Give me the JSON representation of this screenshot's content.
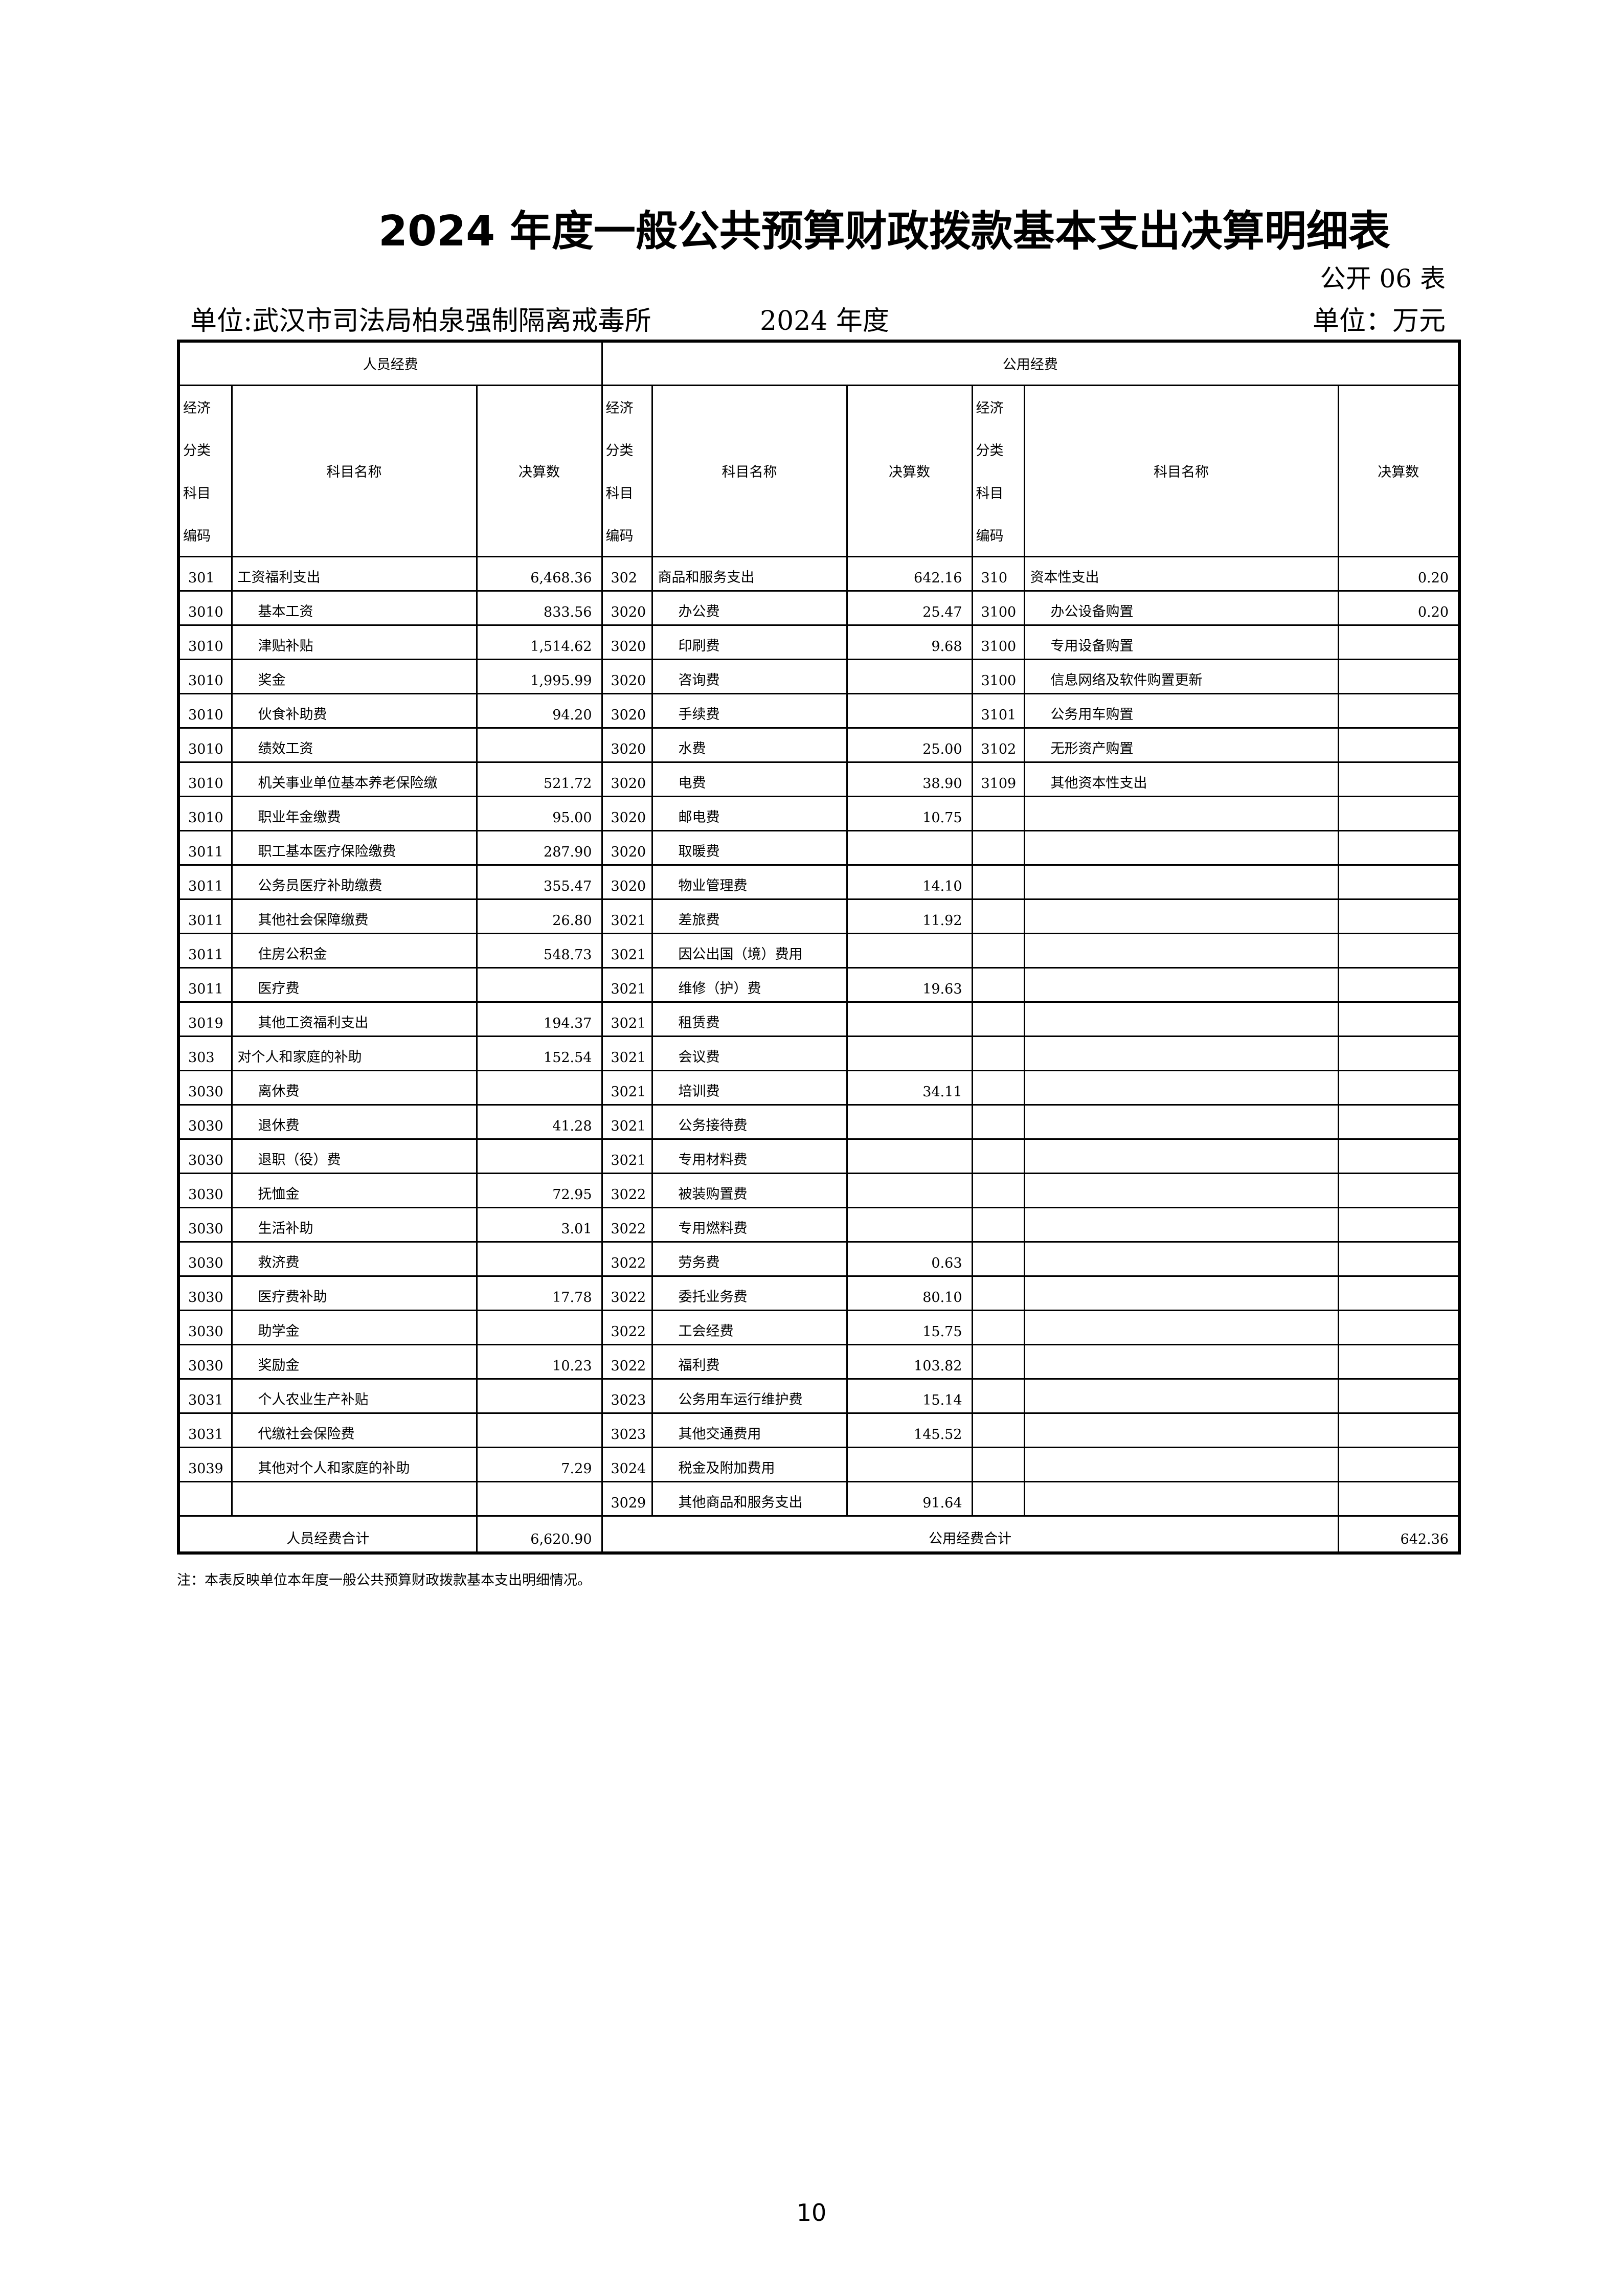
{
  "title": "2024 年度一般公共预算财政拨款基本支出决算明细表",
  "table_no": "公开 06 表",
  "unit_org": "单位:武汉市司法局柏泉强制隔离戒毒所",
  "year": "2024 年度",
  "unit_money": "单位：万元",
  "headers": {
    "personnel": "人员经费",
    "public": "公用经费",
    "code_lines": [
      "经济",
      "分类",
      "科目",
      "编码"
    ],
    "name": "科目名称",
    "amount": "决算数"
  },
  "personnel_rows": [
    {
      "code": "301",
      "name": "工资福利支出",
      "amount": "6,468.36",
      "level": 1
    },
    {
      "code": "3010",
      "name": "基本工资",
      "amount": "833.56",
      "level": 2
    },
    {
      "code": "3010",
      "name": "津贴补贴",
      "amount": "1,514.62",
      "level": 2
    },
    {
      "code": "3010",
      "name": "奖金",
      "amount": "1,995.99",
      "level": 2
    },
    {
      "code": "3010",
      "name": "伙食补助费",
      "amount": "94.20",
      "level": 2
    },
    {
      "code": "3010",
      "name": "绩效工资",
      "amount": "",
      "level": 2
    },
    {
      "code": "3010",
      "name": "机关事业单位基本养老保险缴",
      "amount": "521.72",
      "level": 2
    },
    {
      "code": "3010",
      "name": "职业年金缴费",
      "amount": "95.00",
      "level": 2
    },
    {
      "code": "3011",
      "name": "职工基本医疗保险缴费",
      "amount": "287.90",
      "level": 2
    },
    {
      "code": "3011",
      "name": "公务员医疗补助缴费",
      "amount": "355.47",
      "level": 2
    },
    {
      "code": "3011",
      "name": "其他社会保障缴费",
      "amount": "26.80",
      "level": 2
    },
    {
      "code": "3011",
      "name": "住房公积金",
      "amount": "548.73",
      "level": 2
    },
    {
      "code": "3011",
      "name": "医疗费",
      "amount": "",
      "level": 2
    },
    {
      "code": "3019",
      "name": "其他工资福利支出",
      "amount": "194.37",
      "level": 2
    },
    {
      "code": "303",
      "name": "对个人和家庭的补助",
      "amount": "152.54",
      "level": 1
    },
    {
      "code": "3030",
      "name": "离休费",
      "amount": "",
      "level": 2
    },
    {
      "code": "3030",
      "name": "退休费",
      "amount": "41.28",
      "level": 2
    },
    {
      "code": "3030",
      "name": "退职（役）费",
      "amount": "",
      "level": 2
    },
    {
      "code": "3030",
      "name": "抚恤金",
      "amount": "72.95",
      "level": 2
    },
    {
      "code": "3030",
      "name": "生活补助",
      "amount": "3.01",
      "level": 2
    },
    {
      "code": "3030",
      "name": "救济费",
      "amount": "",
      "level": 2
    },
    {
      "code": "3030",
      "name": "医疗费补助",
      "amount": "17.78",
      "level": 2
    },
    {
      "code": "3030",
      "name": "助学金",
      "amount": "",
      "level": 2
    },
    {
      "code": "3030",
      "name": "奖励金",
      "amount": "10.23",
      "level": 2
    },
    {
      "code": "3031",
      "name": "个人农业生产补贴",
      "amount": "",
      "level": 2
    },
    {
      "code": "3031",
      "name": "代缴社会保险费",
      "amount": "",
      "level": 2
    },
    {
      "code": "3039",
      "name": "其他对个人和家庭的补助",
      "amount": "7.29",
      "level": 2
    },
    {
      "code": "",
      "name": "",
      "amount": "",
      "level": 2
    }
  ],
  "goods_rows": [
    {
      "code": "302",
      "name": "商品和服务支出",
      "amount": "642.16",
      "level": 1
    },
    {
      "code": "3020",
      "name": "办公费",
      "amount": "25.47",
      "level": 2
    },
    {
      "code": "3020",
      "name": "印刷费",
      "amount": "9.68",
      "level": 2
    },
    {
      "code": "3020",
      "name": "咨询费",
      "amount": "",
      "level": 2
    },
    {
      "code": "3020",
      "name": "手续费",
      "amount": "",
      "level": 2
    },
    {
      "code": "3020",
      "name": "水费",
      "amount": "25.00",
      "level": 2
    },
    {
      "code": "3020",
      "name": "电费",
      "amount": "38.90",
      "level": 2
    },
    {
      "code": "3020",
      "name": "邮电费",
      "amount": "10.75",
      "level": 2
    },
    {
      "code": "3020",
      "name": "取暖费",
      "amount": "",
      "level": 2
    },
    {
      "code": "3020",
      "name": "物业管理费",
      "amount": "14.10",
      "level": 2
    },
    {
      "code": "3021",
      "name": "差旅费",
      "amount": "11.92",
      "level": 2
    },
    {
      "code": "3021",
      "name": "因公出国（境）费用",
      "amount": "",
      "level": 2
    },
    {
      "code": "3021",
      "name": "维修（护）费",
      "amount": "19.63",
      "level": 2
    },
    {
      "code": "3021",
      "name": "租赁费",
      "amount": "",
      "level": 2
    },
    {
      "code": "3021",
      "name": "会议费",
      "amount": "",
      "level": 2
    },
    {
      "code": "3021",
      "name": "培训费",
      "amount": "34.11",
      "level": 2
    },
    {
      "code": "3021",
      "name": "公务接待费",
      "amount": "",
      "level": 2
    },
    {
      "code": "3021",
      "name": "专用材料费",
      "amount": "",
      "level": 2
    },
    {
      "code": "3022",
      "name": "被装购置费",
      "amount": "",
      "level": 2
    },
    {
      "code": "3022",
      "name": "专用燃料费",
      "amount": "",
      "level": 2
    },
    {
      "code": "3022",
      "name": "劳务费",
      "amount": "0.63",
      "level": 2
    },
    {
      "code": "3022",
      "name": "委托业务费",
      "amount": "80.10",
      "level": 2
    },
    {
      "code": "3022",
      "name": "工会经费",
      "amount": "15.75",
      "level": 2
    },
    {
      "code": "3022",
      "name": "福利费",
      "amount": "103.82",
      "level": 2
    },
    {
      "code": "3023",
      "name": "公务用车运行维护费",
      "amount": "15.14",
      "level": 2
    },
    {
      "code": "3023",
      "name": "其他交通费用",
      "amount": "145.52",
      "level": 2
    },
    {
      "code": "3024",
      "name": "税金及附加费用",
      "amount": "",
      "level": 2
    },
    {
      "code": "3029",
      "name": "其他商品和服务支出",
      "amount": "91.64",
      "level": 2
    }
  ],
  "capital_rows": [
    {
      "code": "310",
      "name": "资本性支出",
      "amount": "0.20",
      "level": 1
    },
    {
      "code": "3100",
      "name": "办公设备购置",
      "amount": "0.20",
      "level": 2
    },
    {
      "code": "3100",
      "name": "专用设备购置",
      "amount": "",
      "level": 2
    },
    {
      "code": "3100",
      "name": "信息网络及软件购置更新",
      "amount": "",
      "level": 2
    },
    {
      "code": "3101",
      "name": "公务用车购置",
      "amount": "",
      "level": 2
    },
    {
      "code": "3102",
      "name": "无形资产购置",
      "amount": "",
      "level": 2
    },
    {
      "code": "3109",
      "name": "其他资本性支出",
      "amount": "",
      "level": 2
    }
  ],
  "totals": {
    "personnel_label": "人员经费合计",
    "personnel_amount": "6,620.90",
    "public_label": "公用经费合计",
    "public_amount": "642.36"
  },
  "note": "注：本表反映单位本年度一般公共预算财政拨款基本支出明细情况。",
  "page_number": "10"
}
